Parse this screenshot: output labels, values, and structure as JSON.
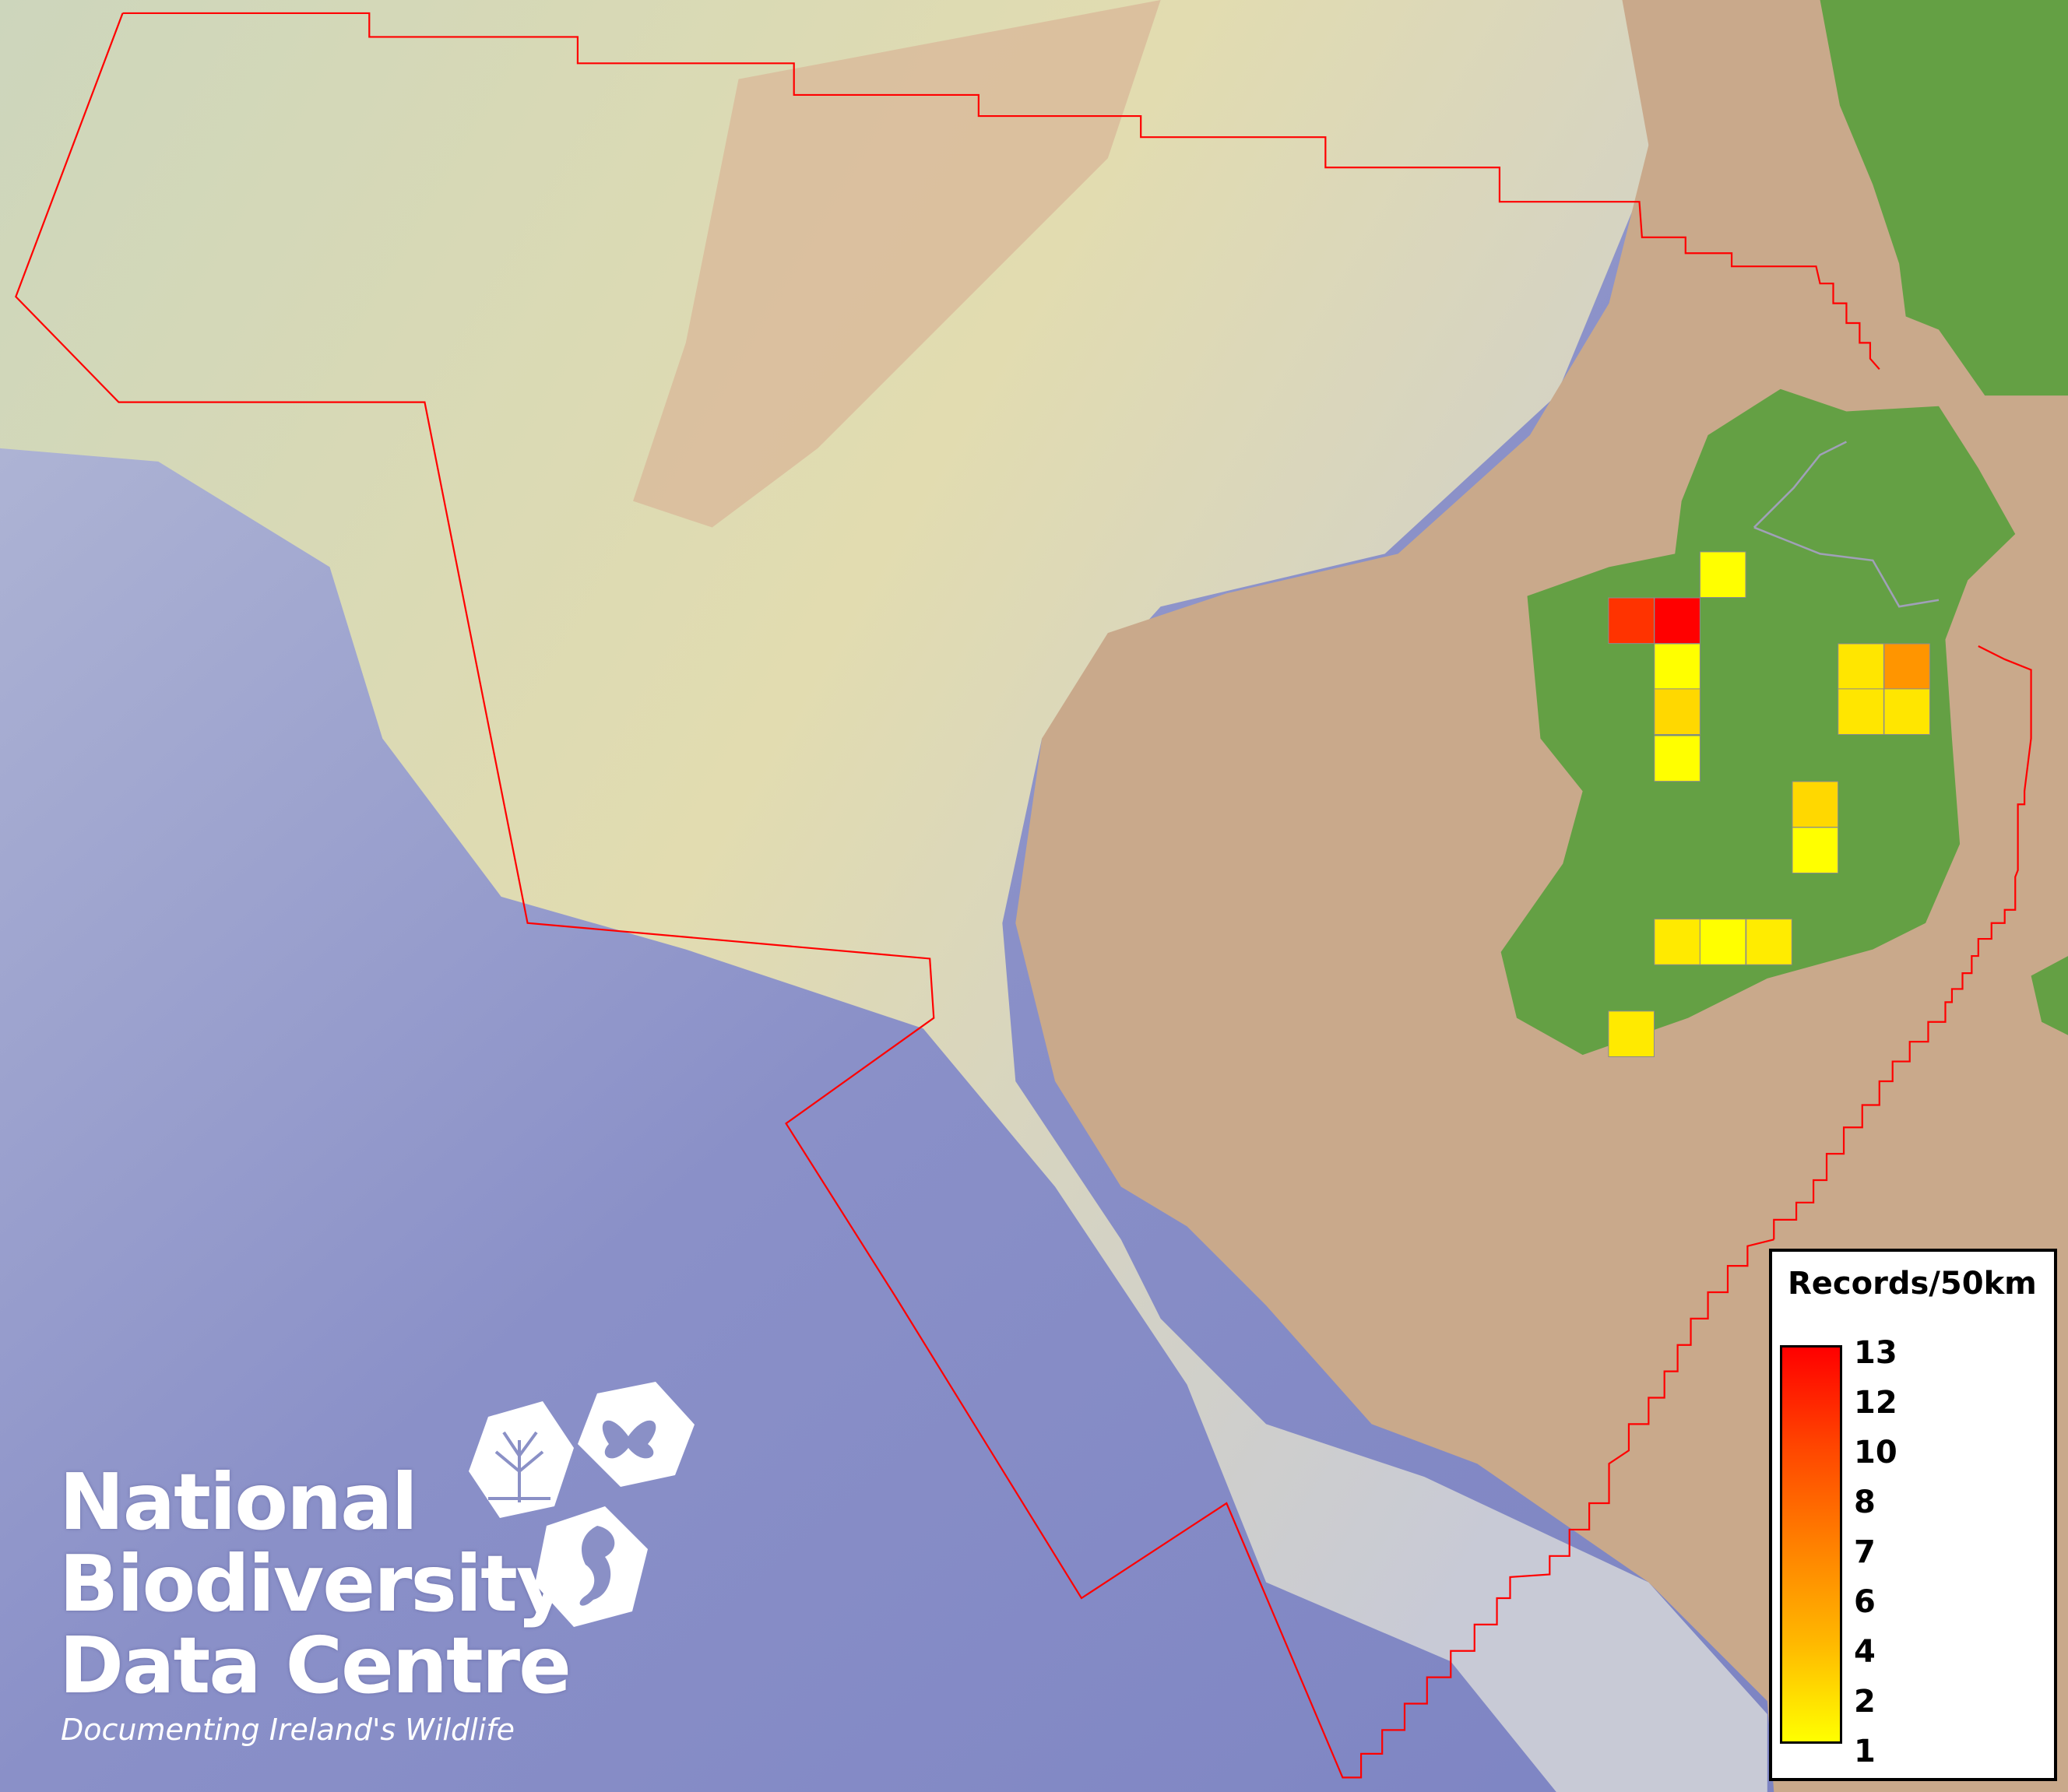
{
  "legend": {
    "title": "Records/50km",
    "tick_labels": [
      "13",
      "12",
      "10",
      "8",
      "7",
      "6",
      "4",
      "2",
      "1"
    ],
    "color_min": "#ffff00",
    "color_max": "#ff0000"
  },
  "cells": [
    {
      "value": 1,
      "color": "#ffff00"
    },
    {
      "value": 12,
      "color": "#ff3300"
    },
    {
      "value": 13,
      "color": "#ff0000"
    },
    {
      "value": 1,
      "color": "#ffff00"
    },
    {
      "value": 3,
      "color": "#ffd800"
    },
    {
      "value": 1,
      "color": "#ffff00"
    },
    {
      "value": 2,
      "color": "#ffe600"
    },
    {
      "value": 7,
      "color": "#ff9500"
    },
    {
      "value": 2,
      "color": "#ffe600"
    },
    {
      "value": 2,
      "color": "#ffe600"
    },
    {
      "value": 3,
      "color": "#ffd800"
    },
    {
      "value": 1,
      "color": "#ffff00"
    },
    {
      "value": 2,
      "color": "#ffea00"
    },
    {
      "value": 1,
      "color": "#ffff00"
    },
    {
      "value": 2,
      "color": "#ffec00"
    },
    {
      "value": 2,
      "color": "#ffea00"
    }
  ],
  "colors": {
    "ocean": "#8088c4",
    "shelf": "#d2d6c4",
    "land_background": "#c9a98b",
    "land": "#64a044",
    "boundary": "#ff0000"
  },
  "logo": {
    "line1": "National",
    "line2": "Biodiversity",
    "line3": "Data Centre",
    "tagline": "Documenting Ireland's Wildlife"
  }
}
